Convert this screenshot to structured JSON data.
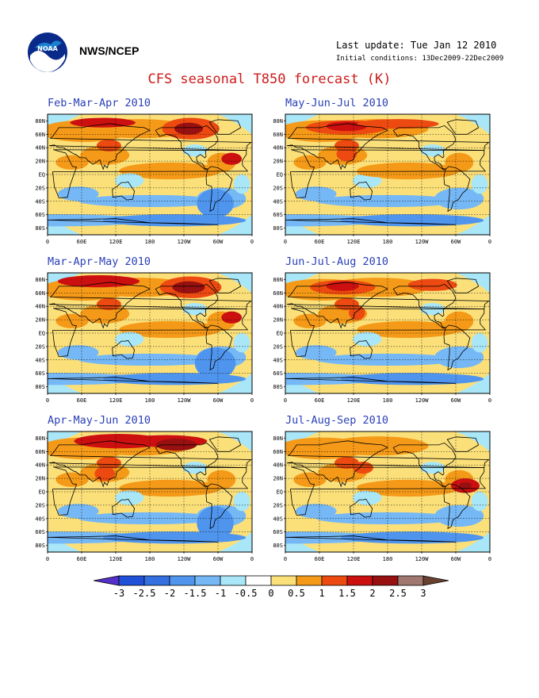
{
  "header": {
    "agency": "NWS/NCEP",
    "last_update": "Last update: Tue Jan 12 2010",
    "initial_conditions": "Initial conditions: 13Dec2009-22Dec2009",
    "title": "CFS seasonal T850 forecast (K)"
  },
  "panels": [
    {
      "title": "Feb-Mar-Apr 2010",
      "variant": 0
    },
    {
      "title": "May-Jun-Jul 2010",
      "variant": 1
    },
    {
      "title": "Mar-Apr-May 2010",
      "variant": 2
    },
    {
      "title": "Jun-Jul-Aug 2010",
      "variant": 3
    },
    {
      "title": "Apr-May-Jun 2010",
      "variant": 4
    },
    {
      "title": "Jul-Aug-Sep 2010",
      "variant": 5
    }
  ],
  "map_axes": {
    "lat_labels": [
      "80N",
      "60N",
      "40N",
      "20N",
      "EQ",
      "20S",
      "40S",
      "60S",
      "80S"
    ],
    "lon_labels": [
      "0",
      "60E",
      "120E",
      "180",
      "120W",
      "60W",
      "0"
    ]
  },
  "colorbar": {
    "ticks": [
      "-3",
      "-2.5",
      "-2",
      "-1.5",
      "-1",
      "-0.5",
      "0",
      "0.5",
      "1",
      "1.5",
      "2",
      "2.5",
      "3"
    ],
    "colors": [
      "#5530c8",
      "#2050d8",
      "#3470e0",
      "#4f95ee",
      "#75b8f5",
      "#a8e6f8",
      "#ffffff",
      "#fbe07a",
      "#f59a18",
      "#ec4a10",
      "#cc1010",
      "#981010",
      "#a07870",
      "#6a4030"
    ]
  }
}
